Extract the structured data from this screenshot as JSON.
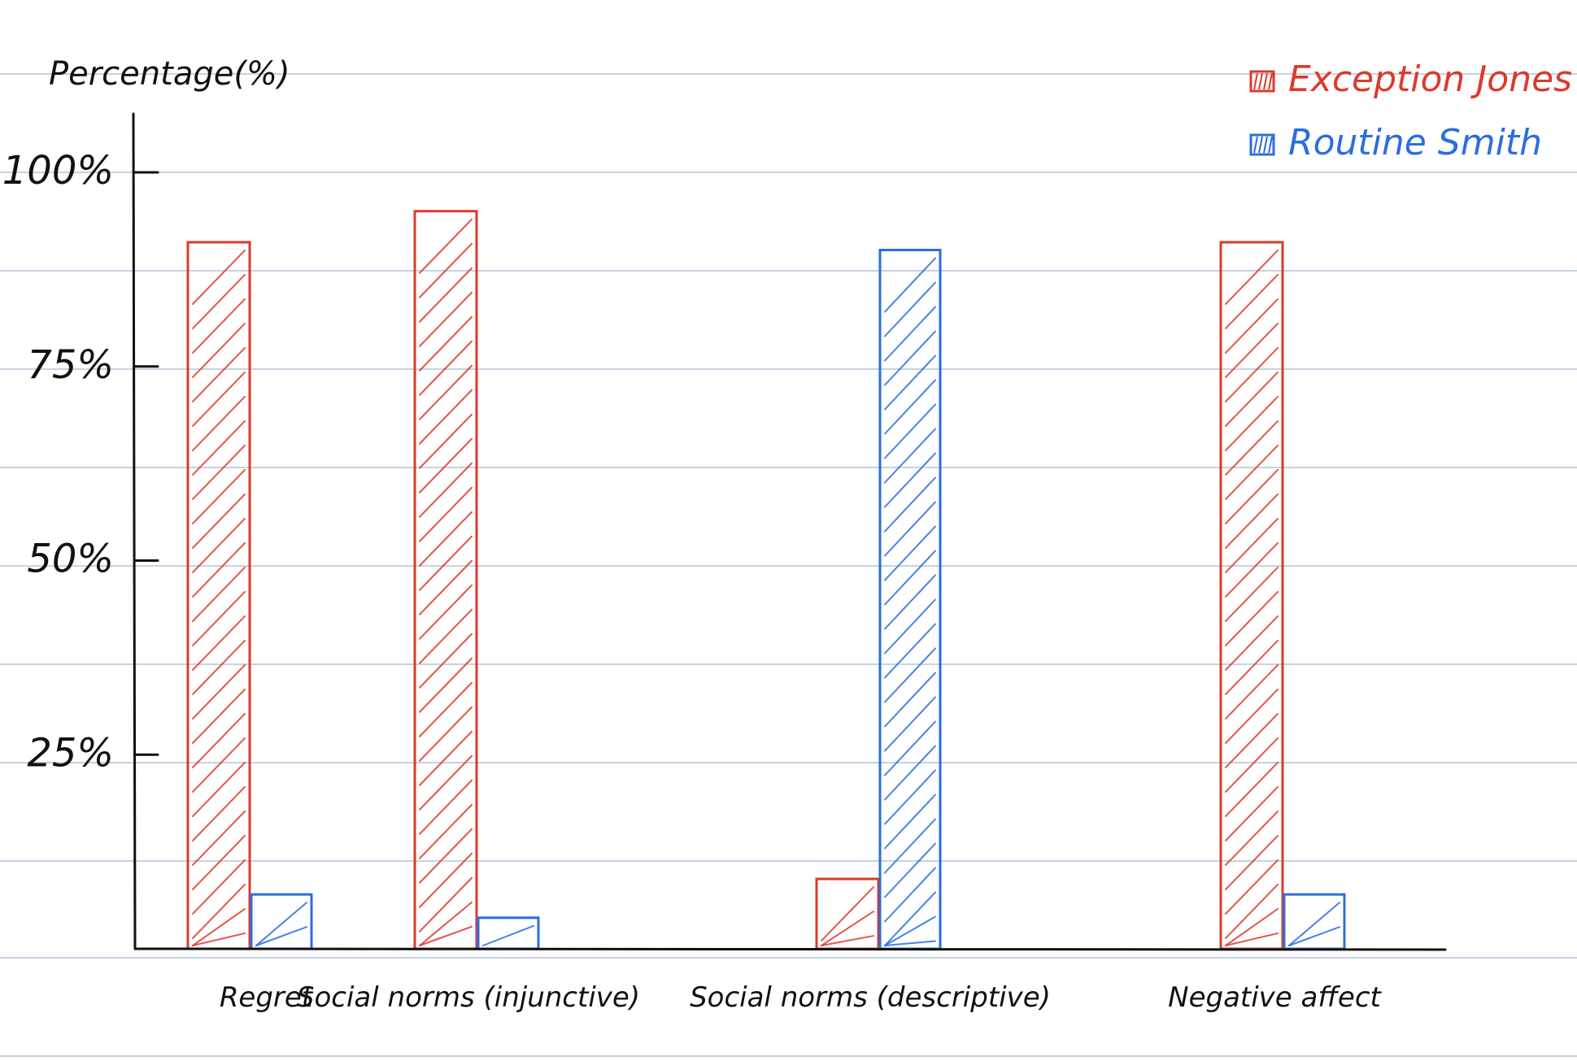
{
  "colors": {
    "exception": "#dc3a2b",
    "routine": "#2a6de0",
    "axis": "#111111",
    "ruled_line": "#c5d3e2"
  },
  "chart_data": {
    "type": "bar",
    "title": "",
    "xlabel": "",
    "ylabel": "Percentage(%)",
    "ylim": [
      0,
      100
    ],
    "yticks": [
      {
        "value": 25,
        "label": "25%"
      },
      {
        "value": 50,
        "label": "50%"
      },
      {
        "value": 75,
        "label": "75%"
      },
      {
        "value": 100,
        "label": "100%"
      }
    ],
    "categories": [
      "Regret",
      "Social norms (injunctive)",
      "Social norms (descriptive)",
      "Negative affect"
    ],
    "series": [
      {
        "name": "Exception Jones",
        "color": "#dc3a2b",
        "values": [
          91,
          95,
          9,
          91
        ]
      },
      {
        "name": "Routine Smith",
        "color": "#2a6de0",
        "values": [
          7,
          4,
          90,
          7
        ]
      }
    ],
    "grid": "notebook ruled lines",
    "legend": "top-right",
    "hatch": "diagonal"
  }
}
